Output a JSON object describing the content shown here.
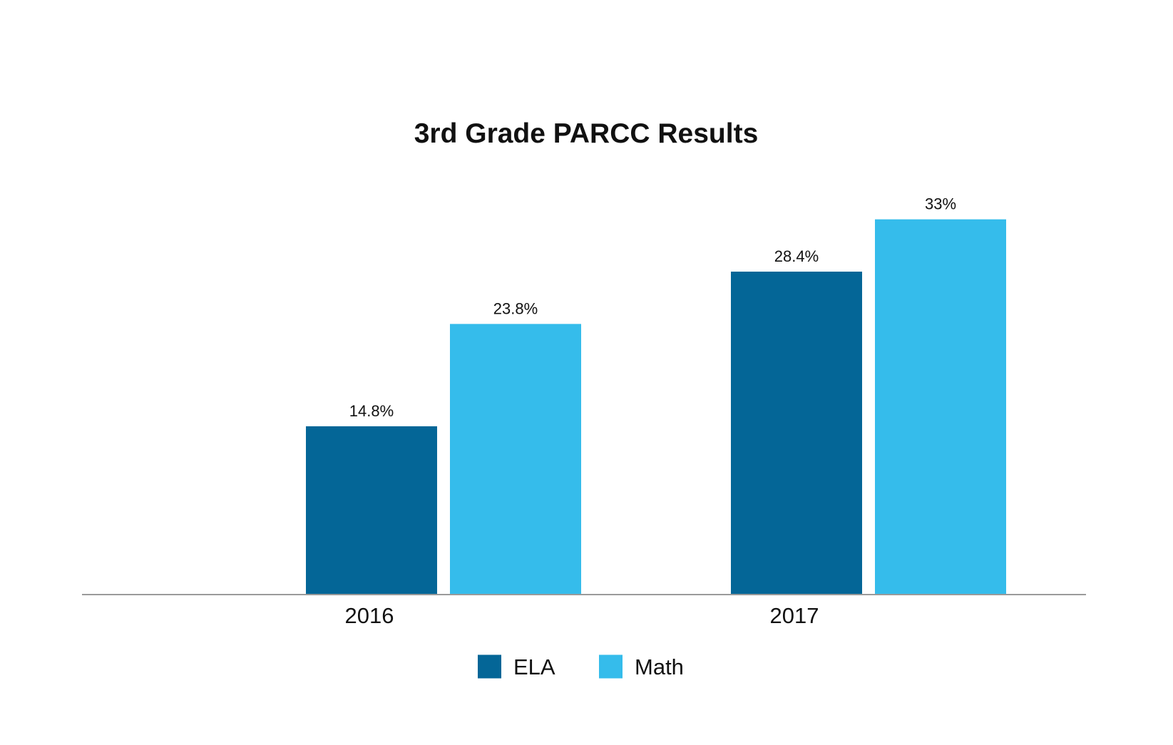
{
  "chart_data": {
    "type": "bar",
    "title": "3rd Grade PARCC Results",
    "xlabel": "",
    "ylabel": "",
    "categories": [
      "2016",
      "2017"
    ],
    "series": [
      {
        "name": "ELA",
        "color": "#046697",
        "values": [
          14.8,
          28.4
        ],
        "labels": [
          "14.8%",
          "28.4%"
        ]
      },
      {
        "name": "Math",
        "color": "#35BCEB",
        "values": [
          23.8,
          33
        ],
        "labels": [
          "23.8%",
          "33%"
        ]
      }
    ],
    "ylim": [
      0,
      40
    ],
    "grid": false,
    "legend_position": "bottom-center",
    "axis_color": "#9a9a9a"
  }
}
